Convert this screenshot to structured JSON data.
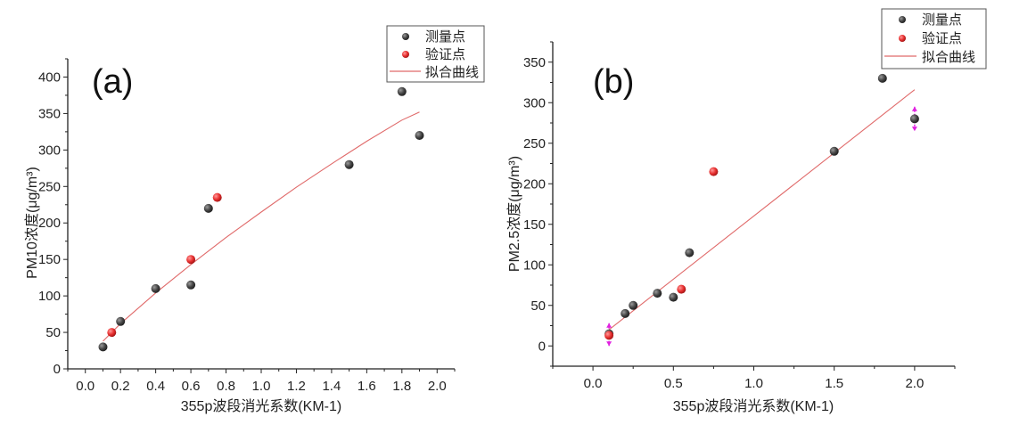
{
  "colors": {
    "measured": "#4a4a4a",
    "validation": "#e83a3a",
    "fit": "#e06a6a",
    "errorbar": "#e020e0",
    "axis": "#222222"
  },
  "chart_data": [
    {
      "type": "scatter",
      "panel_label": "(a)",
      "xlabel": "355p波段消光系数(KM-1)",
      "ylabel": "PM10浓度(μg/m³)",
      "xlim": [
        -0.1,
        2.1
      ],
      "ylim": [
        0,
        425
      ],
      "x_ticks": [
        "0.0",
        "0.2",
        "0.4",
        "0.6",
        "0.8",
        "1.0",
        "1.2",
        "1.4",
        "1.6",
        "1.8",
        "2.0"
      ],
      "x_tick_values": [
        0.0,
        0.2,
        0.4,
        0.6,
        0.8,
        1.0,
        1.2,
        1.4,
        1.6,
        1.8,
        2.0
      ],
      "y_ticks": [
        "0",
        "50",
        "100",
        "150",
        "200",
        "250",
        "300",
        "350",
        "400"
      ],
      "y_tick_values": [
        0,
        50,
        100,
        150,
        200,
        250,
        300,
        350,
        400
      ],
      "legend": {
        "position": "top-right",
        "entries": [
          "测量点",
          "验证点",
          "拟合曲线"
        ]
      },
      "series": [
        {
          "name": "测量点",
          "kind": "points",
          "x": [
            0.1,
            0.2,
            0.4,
            0.6,
            0.7,
            1.5,
            1.8,
            1.9
          ],
          "y": [
            30,
            65,
            110,
            115,
            220,
            280,
            380,
            320
          ]
        },
        {
          "name": "验证点",
          "kind": "points",
          "x": [
            0.15,
            0.6,
            0.75
          ],
          "y": [
            50,
            150,
            235
          ]
        },
        {
          "name": "拟合曲线",
          "kind": "curve",
          "x": [
            0.1,
            0.2,
            0.4,
            0.6,
            0.8,
            1.0,
            1.2,
            1.4,
            1.6,
            1.8,
            1.9
          ],
          "y": [
            38,
            62,
            104,
            143,
            180,
            215,
            249,
            281,
            312,
            341,
            352
          ]
        }
      ]
    },
    {
      "type": "scatter",
      "panel_label": "(b)",
      "xlabel": "355p波段消光系数(KM-1)",
      "ylabel": "PM2.5浓度(μg/m³)",
      "xlim": [
        -0.25,
        2.25
      ],
      "ylim": [
        -25,
        375
      ],
      "x_ticks": [
        "0.0",
        "0.5",
        "1.0",
        "1.5",
        "2.0"
      ],
      "x_tick_values": [
        0.0,
        0.5,
        1.0,
        1.5,
        2.0
      ],
      "y_ticks": [
        "0",
        "50",
        "100",
        "150",
        "200",
        "250",
        "300",
        "350"
      ],
      "y_tick_values": [
        0,
        50,
        100,
        150,
        200,
        250,
        300,
        350
      ],
      "legend": {
        "position": "top-right",
        "entries": [
          "测量点",
          "验证点",
          "拟合曲线"
        ]
      },
      "series": [
        {
          "name": "测量点",
          "kind": "points",
          "x": [
            0.1,
            0.2,
            0.25,
            0.4,
            0.5,
            0.6,
            1.5,
            1.8,
            2.0
          ],
          "y": [
            15,
            40,
            50,
            65,
            60,
            115,
            240,
            330,
            280
          ]
        },
        {
          "name": "验证点",
          "kind": "points",
          "x": [
            0.1,
            0.55,
            0.75
          ],
          "y": [
            13,
            70,
            215
          ]
        },
        {
          "name": "拟合曲线",
          "kind": "line",
          "x": [
            0.1,
            2.0
          ],
          "y": [
            20,
            316
          ]
        }
      ],
      "error_markers": [
        {
          "x": 0.1,
          "y": 14,
          "low": 0,
          "high": 28
        },
        {
          "x": 2.0,
          "y": 280,
          "low": 265,
          "high": 295
        }
      ]
    }
  ]
}
